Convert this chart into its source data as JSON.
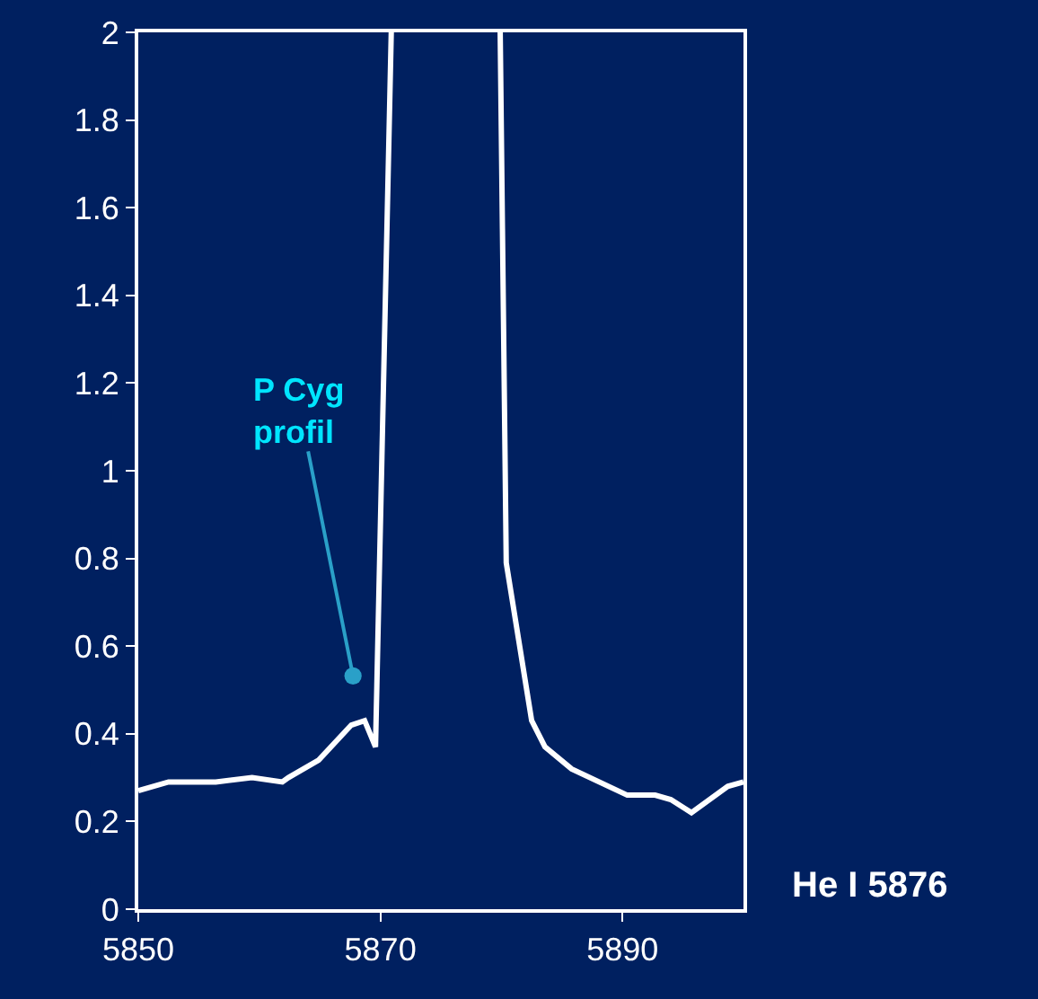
{
  "chart_data": {
    "type": "line",
    "x": [
      5850,
      5852.5,
      5856.4,
      5859.4,
      5861.9,
      5862.4,
      5864.9,
      5867.6,
      5868.7,
      5869.6,
      5870.9,
      5875,
      5879.9,
      5880.4,
      5882.5,
      5883.6,
      5885.8,
      5890.4,
      5892.7,
      5894,
      5895.7,
      5898.7,
      5900
    ],
    "series": [
      {
        "color": "#ffffff",
        "values": [
          0.27,
          0.29,
          0.29,
          0.3,
          0.29,
          0.3,
          0.34,
          0.42,
          0.43,
          0.37,
          2,
          null,
          2,
          0.79,
          0.43,
          0.37,
          0.32,
          0.26,
          0.26,
          0.25,
          0.22,
          0.28,
          0.29
        ]
      }
    ],
    "xlim": [
      5850,
      5900
    ],
    "xticks": [
      5850,
      5870,
      5890
    ],
    "ylim": [
      0,
      2
    ],
    "yticks": [
      0,
      {
        "value": 0.2,
        "label": "0.2"
      },
      {
        "value": 0.4,
        "label": "0.4"
      },
      {
        "value": 0.6,
        "label": "0.6"
      },
      {
        "value": 0.8,
        "label": "0.8"
      },
      1,
      {
        "value": 1.2,
        "label": "1.2"
      },
      {
        "value": 1.4,
        "label": "1.4"
      },
      {
        "value": 1.6,
        "label": "1.6"
      },
      {
        "value": 1.8,
        "label": "1.8"
      },
      2
    ],
    "grid": false,
    "legend": false,
    "marker": "none",
    "line_style": "solid",
    "annotations": [
      "P Cyg profil",
      "He I 5876"
    ]
  }
}
